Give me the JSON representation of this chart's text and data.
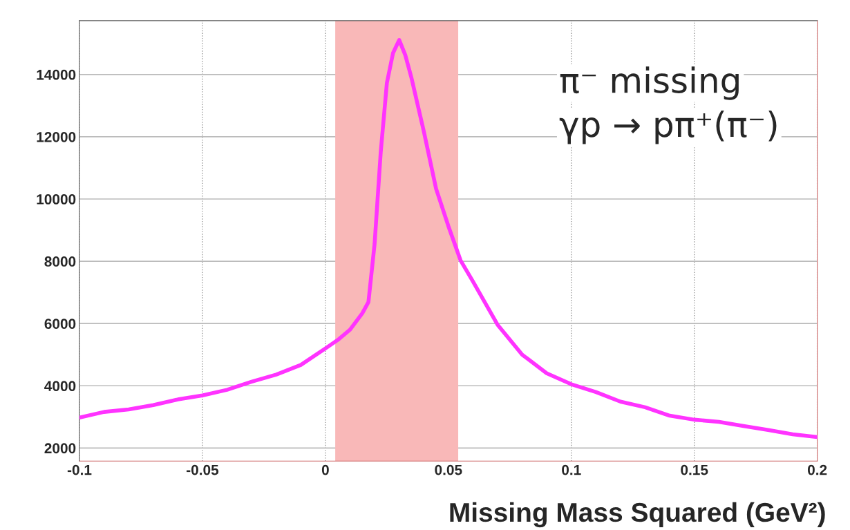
{
  "chart_data": {
    "type": "line",
    "xlabel": "Missing Mass Squared (GeV²)",
    "annotations": [
      "π⁻ missing",
      "γp → pπ⁺(π⁻)"
    ],
    "x": [
      -0.1,
      -0.09,
      -0.08,
      -0.07,
      -0.06,
      -0.05,
      -0.04,
      -0.03,
      -0.02,
      -0.01,
      0,
      0.005,
      0.01,
      0.015,
      0.0175,
      0.02,
      0.0225,
      0.025,
      0.0275,
      0.03,
      0.0325,
      0.035,
      0.04,
      0.045,
      0.05,
      0.055,
      0.06,
      0.07,
      0.08,
      0.09,
      0.1,
      0.11,
      0.12,
      0.13,
      0.14,
      0.15,
      0.16,
      0.17,
      0.18,
      0.19,
      0.2
    ],
    "series": [
      {
        "color": "#ff33ff",
        "values": [
          2980,
          3160,
          3240,
          3380,
          3560,
          3690,
          3870,
          4130,
          4360,
          4670,
          5200,
          5470,
          5800,
          6330,
          6690,
          8560,
          11510,
          13730,
          14690,
          15110,
          14620,
          13890,
          12180,
          10330,
          9130,
          8020,
          7350,
          5960,
          5000,
          4400,
          4050,
          3800,
          3490,
          3310,
          3040,
          2910,
          2840,
          2710,
          2580,
          2440,
          2350
        ]
      }
    ],
    "bands": [
      {
        "axis": "x",
        "from": 0.004,
        "to": 0.054,
        "color": "#f9b8b8"
      }
    ],
    "xlim": [
      -0.1,
      0.2
    ],
    "ylim": [
      1580,
      15730
    ],
    "xticks": [
      -0.1,
      -0.05,
      0,
      0.05,
      0.1,
      0.15,
      0.2
    ],
    "yticks": [
      2000,
      4000,
      6000,
      8000,
      10000,
      12000,
      14000
    ],
    "grid": true,
    "marker": "none",
    "line_style": "solid",
    "legend": false
  }
}
